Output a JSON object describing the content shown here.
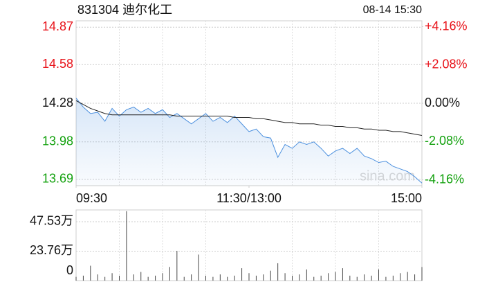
{
  "chart_data": [
    {
      "type": "line",
      "title": "831304 迪尔化工",
      "subtitle": "08-14 15:30",
      "watermark": "sina.com",
      "x": [
        0,
        5,
        10,
        15,
        20,
        25,
        30,
        35,
        40,
        45,
        50,
        55,
        60,
        65,
        70,
        75,
        80,
        85,
        90,
        95,
        100,
        105,
        110,
        115,
        120,
        125,
        130,
        135,
        140,
        145,
        150,
        155,
        160,
        165,
        170,
        175,
        180,
        185,
        190,
        195,
        200,
        205,
        210,
        215,
        220,
        225,
        230,
        235,
        240
      ],
      "xlim": [
        0,
        240
      ],
      "xticks": [
        {
          "value": 0,
          "label": "09:30"
        },
        {
          "value": 120,
          "label": "11:30/13:00"
        },
        {
          "value": 240,
          "label": "15:00"
        }
      ],
      "ylim": [
        13.64,
        14.92
      ],
      "yticks": [
        14.87,
        14.58,
        14.28,
        13.98,
        13.69
      ],
      "y2lim": [
        -4.48,
        4.48
      ],
      "y2ticks": [
        {
          "value": 4.16,
          "label": "+4.16%"
        },
        {
          "value": 2.08,
          "label": "+2.08%"
        },
        {
          "value": 0,
          "label": "0.00%"
        },
        {
          "value": -2.08,
          "label": "-2.08%"
        },
        {
          "value": -4.16,
          "label": "-4.16%"
        }
      ],
      "up_color": "#e8141b",
      "down_color": "#13a10e",
      "grid": true,
      "series": [
        {
          "color": "#4a8fde",
          "fill": true,
          "values": [
            14.32,
            14.25,
            14.2,
            14.21,
            14.14,
            14.24,
            14.18,
            14.23,
            14.25,
            14.21,
            14.24,
            14.2,
            14.23,
            14.17,
            14.2,
            14.16,
            14.12,
            14.16,
            14.2,
            14.14,
            14.17,
            14.13,
            14.18,
            14.12,
            14.06,
            14.08,
            14.02,
            14.01,
            13.86,
            13.96,
            13.93,
            13.98,
            13.96,
            13.98,
            13.93,
            13.87,
            13.91,
            13.93,
            13.89,
            13.93,
            13.87,
            13.85,
            13.82,
            13.83,
            13.79,
            13.77,
            13.75,
            13.71,
            13.66
          ]
        },
        {
          "color": "#222222",
          "fill": false,
          "values": [
            14.3,
            14.27,
            14.24,
            14.22,
            14.2,
            14.19,
            14.19,
            14.19,
            14.19,
            14.19,
            14.19,
            14.19,
            14.19,
            14.19,
            14.18,
            14.18,
            14.18,
            14.18,
            14.18,
            14.18,
            14.18,
            14.18,
            14.17,
            14.17,
            14.17,
            14.16,
            14.16,
            14.15,
            14.14,
            14.13,
            14.13,
            14.12,
            14.12,
            14.12,
            14.11,
            14.11,
            14.1,
            14.1,
            14.09,
            14.09,
            14.08,
            14.08,
            14.07,
            14.07,
            14.06,
            14.06,
            14.05,
            14.04,
            14.03
          ]
        }
      ]
    },
    {
      "type": "bar",
      "color": "#444444",
      "grid": true,
      "x": [
        0,
        5,
        10,
        15,
        20,
        25,
        30,
        35,
        40,
        45,
        50,
        55,
        60,
        65,
        70,
        75,
        80,
        85,
        90,
        95,
        100,
        105,
        110,
        115,
        120,
        125,
        130,
        135,
        140,
        145,
        150,
        155,
        160,
        165,
        170,
        175,
        180,
        185,
        190,
        195,
        200,
        205,
        210,
        215,
        220,
        225,
        230,
        235,
        240
      ],
      "xlim": [
        0,
        240
      ],
      "values": [
        30000,
        40000,
        120000,
        50000,
        30000,
        60000,
        40000,
        560000,
        50000,
        70000,
        30000,
        40000,
        60000,
        110000,
        240000,
        30000,
        50000,
        210000,
        40000,
        30000,
        50000,
        30000,
        40000,
        100000,
        60000,
        40000,
        50000,
        80000,
        140000,
        60000,
        40000,
        50000,
        90000,
        30000,
        40000,
        60000,
        70000,
        100000,
        40000,
        30000,
        50000,
        40000,
        90000,
        30000,
        40000,
        60000,
        70000,
        50000,
        110000
      ],
      "ylim": [
        0,
        570000
      ],
      "yticks": [
        {
          "value": 475300,
          "label": "47.53万"
        },
        {
          "value": 237600,
          "label": "23.76万"
        },
        0
      ]
    }
  ]
}
